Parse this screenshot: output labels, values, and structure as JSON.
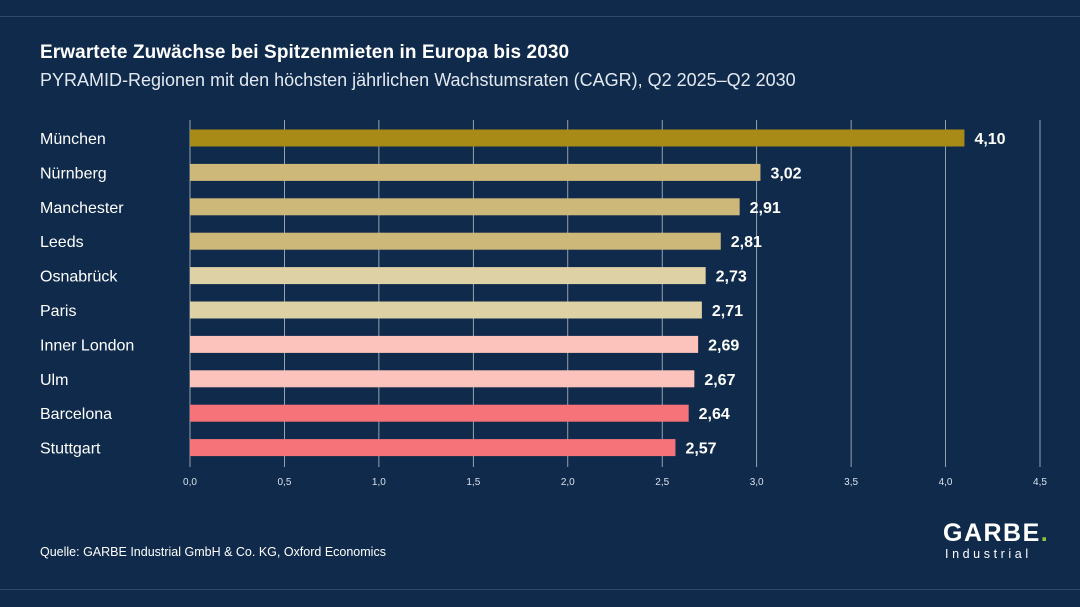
{
  "header": {
    "title": "Erwartete Zuwächse bei Spitzenmieten in Europa bis 2030",
    "subtitle": "PYRAMID-Regionen mit den höchsten jährlichen Wachstumsraten (CAGR), Q2 2025–Q2 2030"
  },
  "chart_data": {
    "type": "bar",
    "orientation": "horizontal",
    "title": "Erwartete Zuwächse bei Spitzenmieten in Europa bis 2030",
    "subtitle": "PYRAMID-Regionen mit den höchsten jährlichen Wachstumsraten (CAGR), Q2 2025–Q2 2030",
    "categories": [
      "München",
      "Nürnberg",
      "Manchester",
      "Leeds",
      "Osnabrück",
      "Paris",
      "Inner London",
      "Ulm",
      "Barcelona",
      "Stuttgart"
    ],
    "values": [
      4.1,
      3.02,
      2.91,
      2.81,
      2.73,
      2.71,
      2.69,
      2.67,
      2.64,
      2.57
    ],
    "value_labels": [
      "4,10",
      "3,02",
      "2,91",
      "2,81",
      "2,73",
      "2,71",
      "2,69",
      "2,67",
      "2,64",
      "2,57"
    ],
    "bar_colors": [
      "#a88a16",
      "#cdb87a",
      "#cdb87a",
      "#cdb87a",
      "#dfd1a6",
      "#dfd1a6",
      "#fbc3bc",
      "#fbc3bc",
      "#f7737a",
      "#f7737a"
    ],
    "xlim": [
      0,
      4.5
    ],
    "x_ticks": [
      0,
      0.5,
      1.0,
      1.5,
      2.0,
      2.5,
      3.0,
      3.5,
      4.0,
      4.5
    ],
    "x_tick_labels": [
      "0,0",
      "0,5",
      "1,0",
      "1,5",
      "2,0",
      "2,5",
      "3,0",
      "3,5",
      "4,0",
      "4,5"
    ],
    "grid": true,
    "xlabel": "",
    "ylabel": ""
  },
  "footer": {
    "source": "Quelle: GARBE Industrial GmbH & Co. KG, Oxford Economics"
  },
  "logo": {
    "main": "GARBE",
    "dot": ".",
    "sub": "Industrial"
  },
  "colors": {
    "background": "#0f2a4a",
    "gridline": "#ffffff",
    "accent": "#8cc63f"
  }
}
